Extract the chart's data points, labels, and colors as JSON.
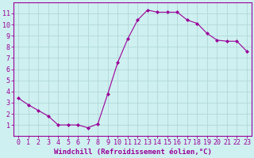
{
  "x": [
    0,
    1,
    2,
    3,
    4,
    5,
    6,
    7,
    8,
    9,
    10,
    11,
    12,
    13,
    14,
    15,
    16,
    17,
    18,
    19,
    20,
    21,
    22,
    23
  ],
  "y": [
    3.4,
    2.8,
    2.3,
    1.8,
    1.0,
    1.0,
    1.0,
    0.75,
    1.1,
    3.8,
    6.6,
    8.7,
    10.4,
    11.3,
    11.1,
    11.1,
    11.1,
    10.4,
    10.1,
    9.2,
    8.6,
    8.5,
    8.5,
    7.6
  ],
  "line_color": "#990099",
  "marker": "D",
  "marker_size": 2,
  "bg_color": "#cff0f0",
  "grid_color": "#b0d8d8",
  "xlabel": "Windchill (Refroidissement éolien,°C)",
  "xlim": [
    -0.5,
    23.5
  ],
  "ylim": [
    0,
    12
  ],
  "yticks": [
    1,
    2,
    3,
    4,
    5,
    6,
    7,
    8,
    9,
    10,
    11
  ],
  "xticks": [
    0,
    1,
    2,
    3,
    4,
    5,
    6,
    7,
    8,
    9,
    10,
    11,
    12,
    13,
    14,
    15,
    16,
    17,
    18,
    19,
    20,
    21,
    22,
    23
  ],
  "tick_color": "#990099",
  "label_color": "#990099",
  "axis_color": "#990099",
  "xlabel_fontsize": 6.5,
  "tick_fontsize": 6.0,
  "spine_color": "#990099"
}
